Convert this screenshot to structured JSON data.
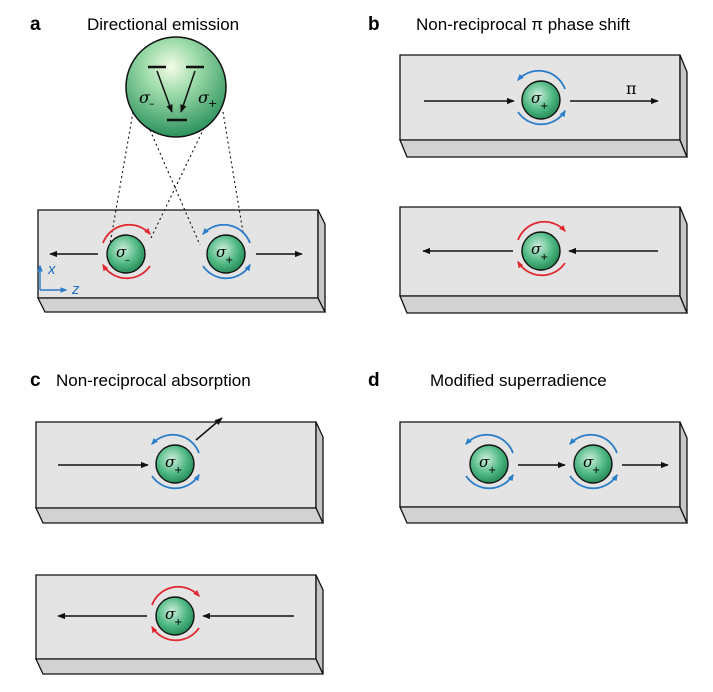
{
  "colors": {
    "slab_top": "#e4e4e4",
    "slab_front": "#d2d2d2",
    "slab_edge": "#111111",
    "atom_dark": "#1f8a55",
    "atom_light": "#cdeedd",
    "blue": "#2b7cc9",
    "red": "#e0292f"
  },
  "panel_a": {
    "label": "a",
    "title": "Directional emission",
    "zoom_left": "σ",
    "zoom_left_sub": "–",
    "zoom_right": "σ",
    "zoom_right_sub": "+",
    "atom_left": "σ",
    "atom_left_sub": "–",
    "atom_right": "σ",
    "atom_right_sub": "+",
    "axis_x": "x",
    "axis_z": "z"
  },
  "panel_b": {
    "label": "b",
    "title": "Non-reciprocal π phase shift",
    "phase": "π",
    "atom_top": "σ",
    "atom_top_sub": "+",
    "atom_bottom": "σ",
    "atom_bottom_sub": "+"
  },
  "panel_c": {
    "label": "c",
    "title": "Non-reciprocal absorption",
    "atom_top": "σ",
    "atom_top_sub": "+",
    "atom_bottom": "σ",
    "atom_bottom_sub": "+"
  },
  "panel_d": {
    "label": "d",
    "title": "Modified superradience",
    "atom_1": "σ",
    "atom_1_sub": "+",
    "atom_2": "σ",
    "atom_2_sub": "+"
  }
}
